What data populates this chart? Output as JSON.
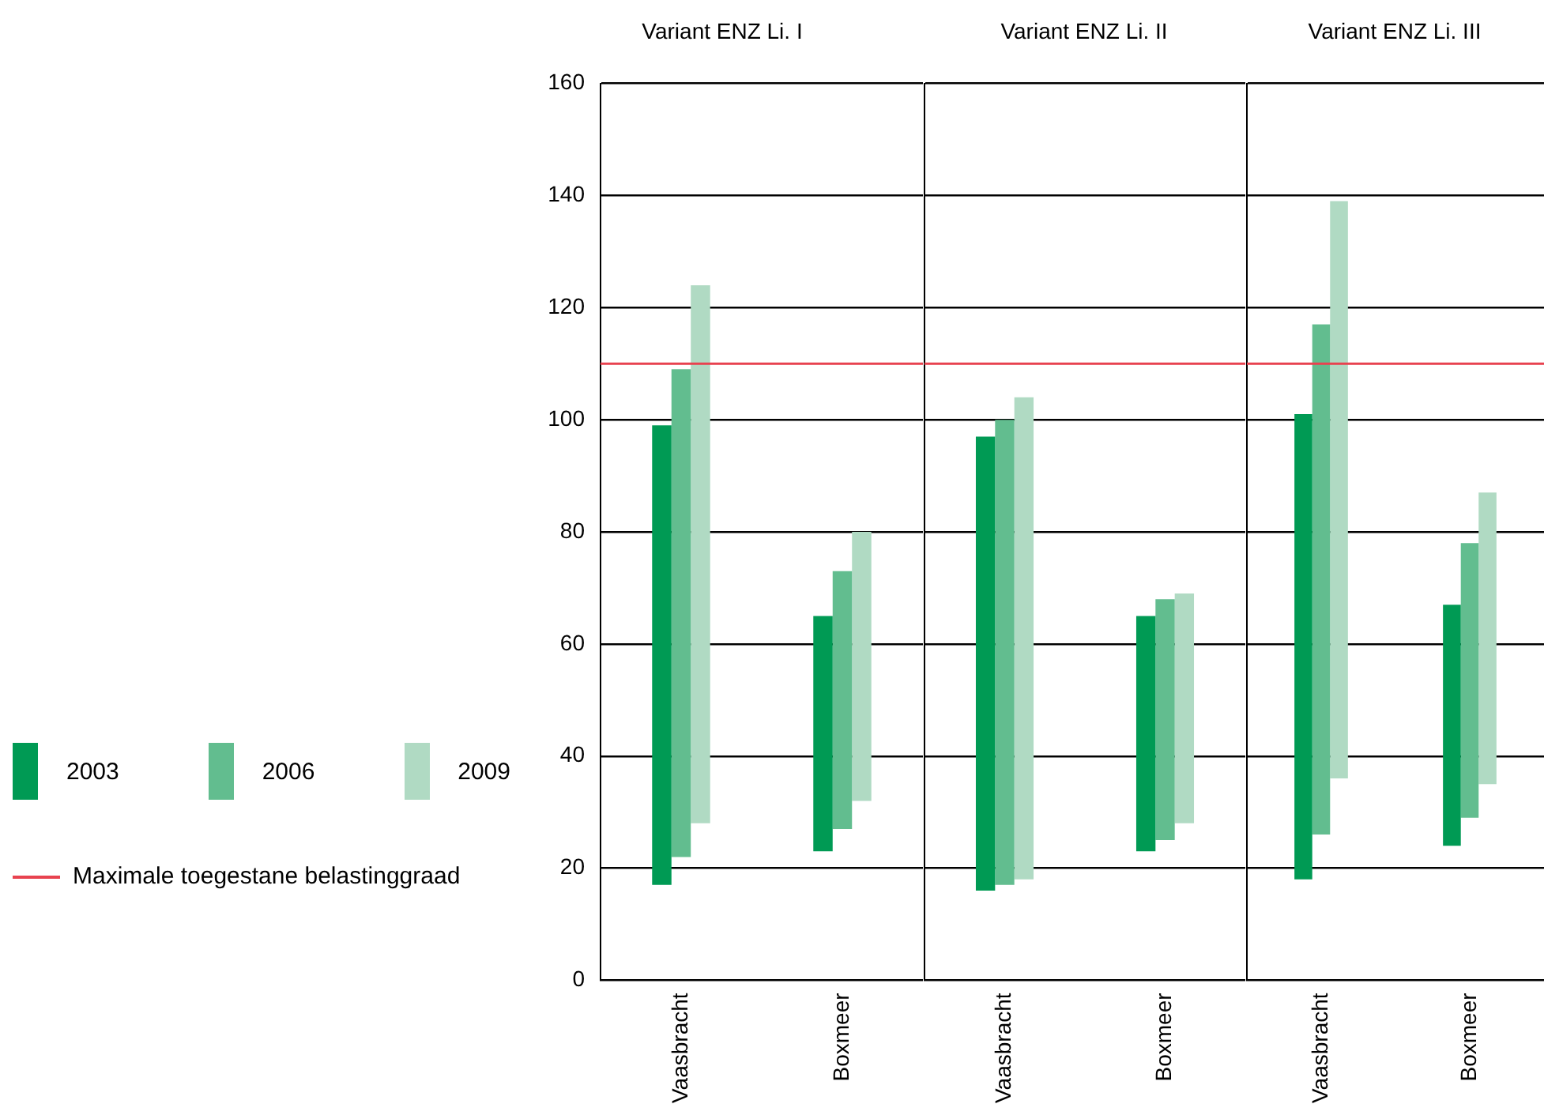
{
  "chart_data": [
    {
      "type": "bar",
      "title": "Variant ENZ Li. I",
      "categories": [
        "Vaasbracht",
        "Boxmeer"
      ],
      "series": [
        {
          "name": "2003",
          "color": "#009a54",
          "base": [
            17,
            23
          ],
          "values": [
            82,
            42
          ]
        },
        {
          "name": "2006",
          "color": "#62bd8f",
          "base": [
            22,
            27
          ],
          "values": [
            87,
            46
          ]
        },
        {
          "name": "2009",
          "color": "#b0dac3",
          "base": [
            28,
            32
          ],
          "values": [
            96,
            48
          ]
        }
      ],
      "ylim": [
        0,
        160
      ],
      "yticks": [
        0,
        20,
        40,
        60,
        80,
        100,
        120,
        140,
        160
      ],
      "grid": "y",
      "legend": "left",
      "ref_lines": [
        {
          "axis": "y",
          "value": 110,
          "label": "Maximale toegestane belastinggraad",
          "color": "#e8424f"
        }
      ]
    },
    {
      "type": "bar",
      "title": "Variant ENZ Li. II",
      "categories": [
        "Vaasbracht",
        "Boxmeer"
      ],
      "series": [
        {
          "name": "2003",
          "color": "#009a54",
          "base": [
            16,
            23
          ],
          "values": [
            81,
            42
          ]
        },
        {
          "name": "2006",
          "color": "#62bd8f",
          "base": [
            17,
            25
          ],
          "values": [
            83,
            43
          ]
        },
        {
          "name": "2009",
          "color": "#b0dac3",
          "base": [
            18,
            28
          ],
          "values": [
            86,
            41
          ]
        }
      ],
      "ylim": [
        0,
        160
      ],
      "yticks": [
        0,
        20,
        40,
        60,
        80,
        100,
        120,
        140,
        160
      ],
      "grid": "y",
      "tick_labels": "x",
      "ref_lines": [
        {
          "axis": "y",
          "value": 110,
          "color": "#e8424f"
        }
      ]
    },
    {
      "type": "bar",
      "title": "Variant ENZ Li. III",
      "categories": [
        "Vaasbracht",
        "Boxmeer"
      ],
      "series": [
        {
          "name": "2003",
          "color": "#009a54",
          "base": [
            18,
            24
          ],
          "values": [
            83,
            43
          ]
        },
        {
          "name": "2006",
          "color": "#62bd8f",
          "base": [
            26,
            29
          ],
          "values": [
            91,
            49
          ]
        },
        {
          "name": "2009",
          "color": "#b0dac3",
          "base": [
            36,
            35
          ],
          "values": [
            103,
            52
          ]
        }
      ],
      "ylim": [
        0,
        160
      ],
      "yticks": [
        0,
        20,
        40,
        60,
        80,
        100,
        120,
        140,
        160
      ],
      "grid": "y",
      "tick_labels": "x",
      "ref_lines": [
        {
          "axis": "y",
          "value": 110,
          "color": "#e8424f"
        }
      ]
    }
  ]
}
